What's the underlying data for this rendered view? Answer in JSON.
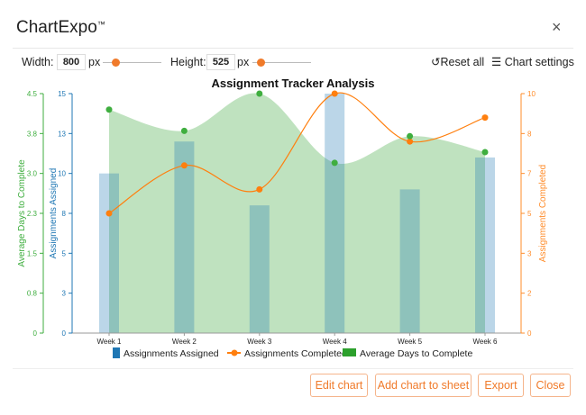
{
  "header": {
    "title": "ChartExpo",
    "trademark": "™",
    "close_icon": "×"
  },
  "toolbar": {
    "width_label": "Width:",
    "width_value": "800",
    "height_label": "Height:",
    "height_value": "525",
    "unit": "px",
    "reset_label": "Reset all",
    "settings_label": "Chart settings"
  },
  "buttons": {
    "edit": "Edit chart",
    "add": "Add chart to sheet",
    "export": "Export",
    "close": "Close"
  },
  "colors": {
    "bar": "#1f77b4",
    "line": "#ff7f0e",
    "area": "#2ca02c",
    "accent": "#f07a2a"
  },
  "chart_data": {
    "type": "bar",
    "title": "Assignment Tracker Analysis",
    "categories": [
      "Week 1",
      "Week 2",
      "Week 3",
      "Week 4",
      "Week 5",
      "Week 6"
    ],
    "series": [
      {
        "name": "Assignments Assigned",
        "type": "bar",
        "axis": "left-inner",
        "values": [
          10,
          12,
          8,
          15,
          9,
          11
        ]
      },
      {
        "name": "Assignments Completed",
        "type": "line",
        "axis": "right",
        "values": [
          5,
          7,
          6,
          10,
          8,
          9
        ]
      },
      {
        "name": "Average Days to Complete",
        "type": "area",
        "axis": "left-outer",
        "values": [
          4.2,
          3.8,
          4.5,
          3.2,
          3.7,
          3.4
        ]
      }
    ],
    "axes": {
      "left_outer": {
        "label": "Average Days to Complete",
        "range": [
          0,
          4.5
        ],
        "ticks": [
          "0",
          "0.8",
          "1.5",
          "2.3",
          "3.0",
          "3.8",
          "4.5"
        ]
      },
      "left_inner": {
        "label": "Assignments Assigned",
        "range": [
          0,
          15
        ],
        "ticks": [
          "0",
          "3",
          "5",
          "8",
          "10",
          "13",
          "15"
        ]
      },
      "right": {
        "label": "Assignments Completed",
        "range": [
          0,
          10
        ],
        "ticks": [
          "0",
          "2",
          "3",
          "5",
          "7",
          "8",
          "10"
        ]
      }
    },
    "legend": "bottom"
  }
}
